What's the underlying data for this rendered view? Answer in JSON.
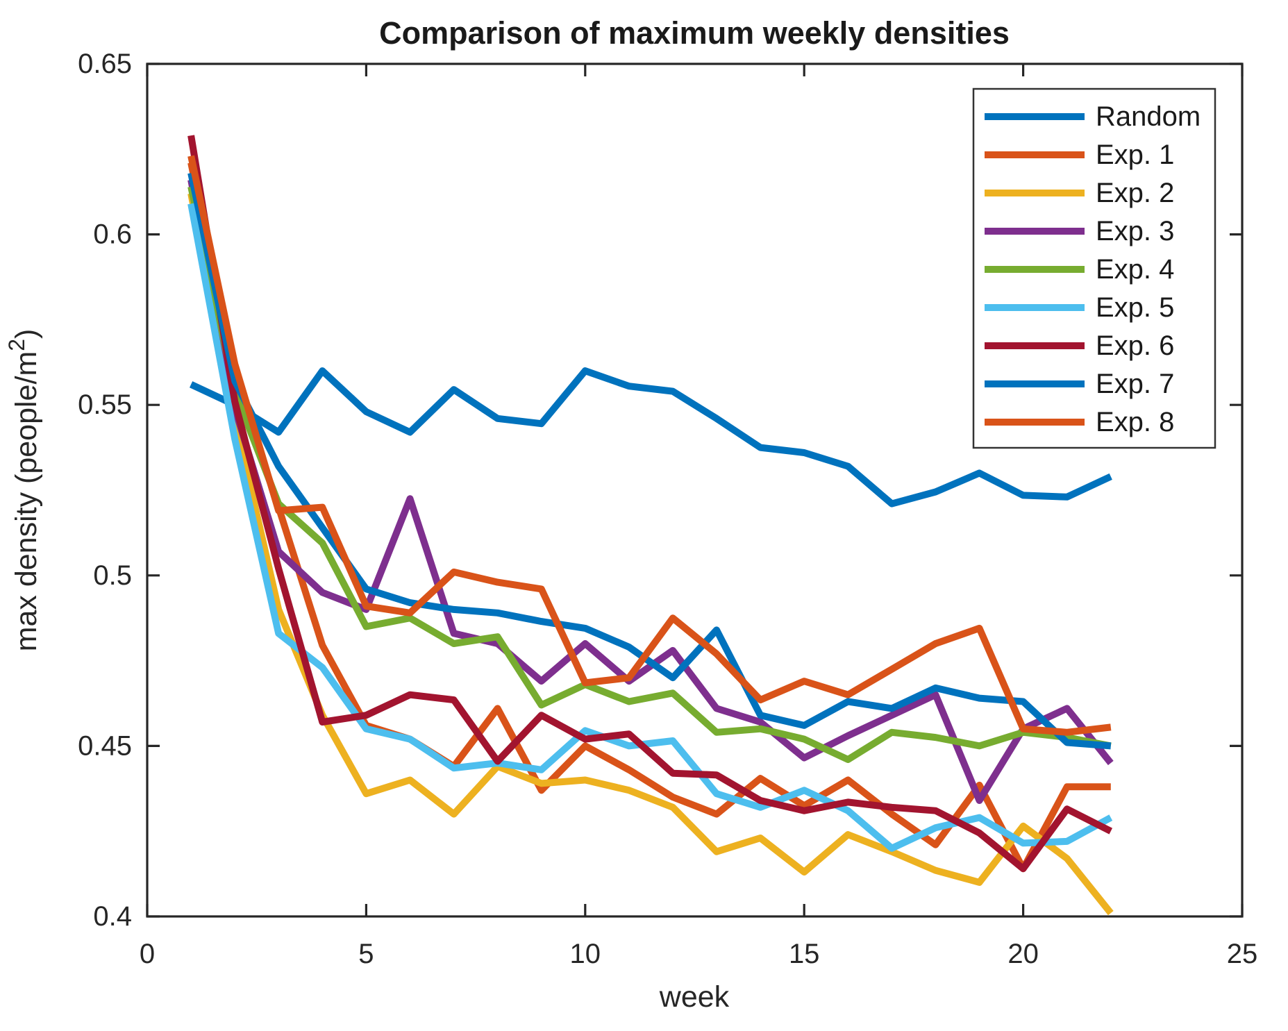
{
  "figure": {
    "title": "Comparison of maximum weekly densities",
    "xlabel": "week",
    "ylabel": "max density (people/m²)",
    "ylabel_parts": {
      "main": "max density (people/m",
      "sup": "2",
      "end": ")"
    }
  },
  "chart_data": {
    "type": "line",
    "title": "Comparison of maximum weekly densities",
    "xlabel": "week",
    "ylabel": "max density (people/m²)",
    "xlim": [
      0,
      25
    ],
    "ylim": [
      0.4,
      0.65
    ],
    "xticks": [
      "0",
      "5",
      "10",
      "15",
      "20",
      "25"
    ],
    "yticks": [
      "0.4",
      "0.45",
      "0.5",
      "0.55",
      "0.6",
      "0.65"
    ],
    "grid": false,
    "legend_position": "top-right",
    "x": [
      1,
      2,
      3,
      4,
      5,
      6,
      7,
      8,
      9,
      10,
      11,
      12,
      13,
      14,
      15,
      16,
      17,
      18,
      19,
      20,
      21,
      22
    ],
    "series": [
      {
        "name": "Random",
        "color": "#0072BD",
        "values": [
          0.556,
          0.55,
          0.542,
          0.56,
          0.548,
          0.542,
          0.5545,
          0.546,
          0.5445,
          0.56,
          0.5555,
          0.554,
          0.546,
          0.5375,
          0.536,
          0.532,
          0.521,
          0.5245,
          0.53,
          0.5235,
          0.523,
          0.529
        ]
      },
      {
        "name": "Exp. 1",
        "color": "#D95319",
        "values": [
          0.621,
          0.558,
          0.52,
          0.4795,
          0.456,
          0.452,
          0.444,
          0.461,
          0.437,
          0.45,
          0.443,
          0.435,
          0.43,
          0.4405,
          0.4325,
          0.44,
          0.43,
          0.421,
          0.4385,
          0.414,
          0.438,
          0.438
        ]
      },
      {
        "name": "Exp. 2",
        "color": "#EDB120",
        "values": [
          0.612,
          0.546,
          0.49,
          0.459,
          0.436,
          0.44,
          0.43,
          0.444,
          0.439,
          0.44,
          0.437,
          0.432,
          0.419,
          0.423,
          0.413,
          0.424,
          0.419,
          0.4135,
          0.41,
          0.4265,
          0.417,
          0.401
        ]
      },
      {
        "name": "Exp. 3",
        "color": "#7E2F8E",
        "values": [
          0.616,
          0.549,
          0.507,
          0.495,
          0.49,
          0.5225,
          0.483,
          0.48,
          0.469,
          0.48,
          0.469,
          0.478,
          0.461,
          0.457,
          0.4465,
          0.453,
          0.459,
          0.465,
          0.434,
          0.455,
          0.461,
          0.445
        ]
      },
      {
        "name": "Exp. 4",
        "color": "#77AC30",
        "values": [
          0.614,
          0.554,
          0.521,
          0.5095,
          0.485,
          0.4875,
          0.48,
          0.482,
          0.462,
          0.468,
          0.463,
          0.4655,
          0.454,
          0.455,
          0.452,
          0.446,
          0.454,
          0.4525,
          0.45,
          0.454,
          0.4525,
          0.45
        ]
      },
      {
        "name": "Exp. 5",
        "color": "#4DBEEE",
        "values": [
          0.609,
          0.54,
          0.483,
          0.473,
          0.455,
          0.452,
          0.4435,
          0.445,
          0.443,
          0.4545,
          0.45,
          0.4515,
          0.436,
          0.432,
          0.437,
          0.431,
          0.42,
          0.426,
          0.429,
          0.4215,
          0.422,
          0.429
        ]
      },
      {
        "name": "Exp. 6",
        "color": "#A2142F",
        "values": [
          0.629,
          0.551,
          0.502,
          0.457,
          0.459,
          0.465,
          0.4635,
          0.4455,
          0.459,
          0.452,
          0.4535,
          0.442,
          0.4415,
          0.434,
          0.431,
          0.4335,
          0.432,
          0.431,
          0.4245,
          0.414,
          0.4315,
          0.425
        ]
      },
      {
        "name": "Exp. 7",
        "color": "#0072BD",
        "values": [
          0.618,
          0.557,
          0.532,
          0.514,
          0.496,
          0.492,
          0.49,
          0.489,
          0.4865,
          0.4845,
          0.479,
          0.47,
          0.484,
          0.459,
          0.456,
          0.463,
          0.461,
          0.467,
          0.464,
          0.463,
          0.451,
          0.45
        ]
      },
      {
        "name": "Exp. 8",
        "color": "#D95319",
        "values": [
          0.623,
          0.562,
          0.519,
          0.52,
          0.491,
          0.489,
          0.501,
          0.498,
          0.496,
          0.4685,
          0.47,
          0.4875,
          0.477,
          0.4635,
          0.469,
          0.465,
          0.4725,
          0.48,
          0.4845,
          0.455,
          0.454,
          0.4555
        ]
      }
    ]
  },
  "legend": {
    "entries": [
      "Random",
      "Exp. 1",
      "Exp. 2",
      "Exp. 3",
      "Exp. 4",
      "Exp. 5",
      "Exp. 6",
      "Exp. 7",
      "Exp. 8"
    ]
  }
}
